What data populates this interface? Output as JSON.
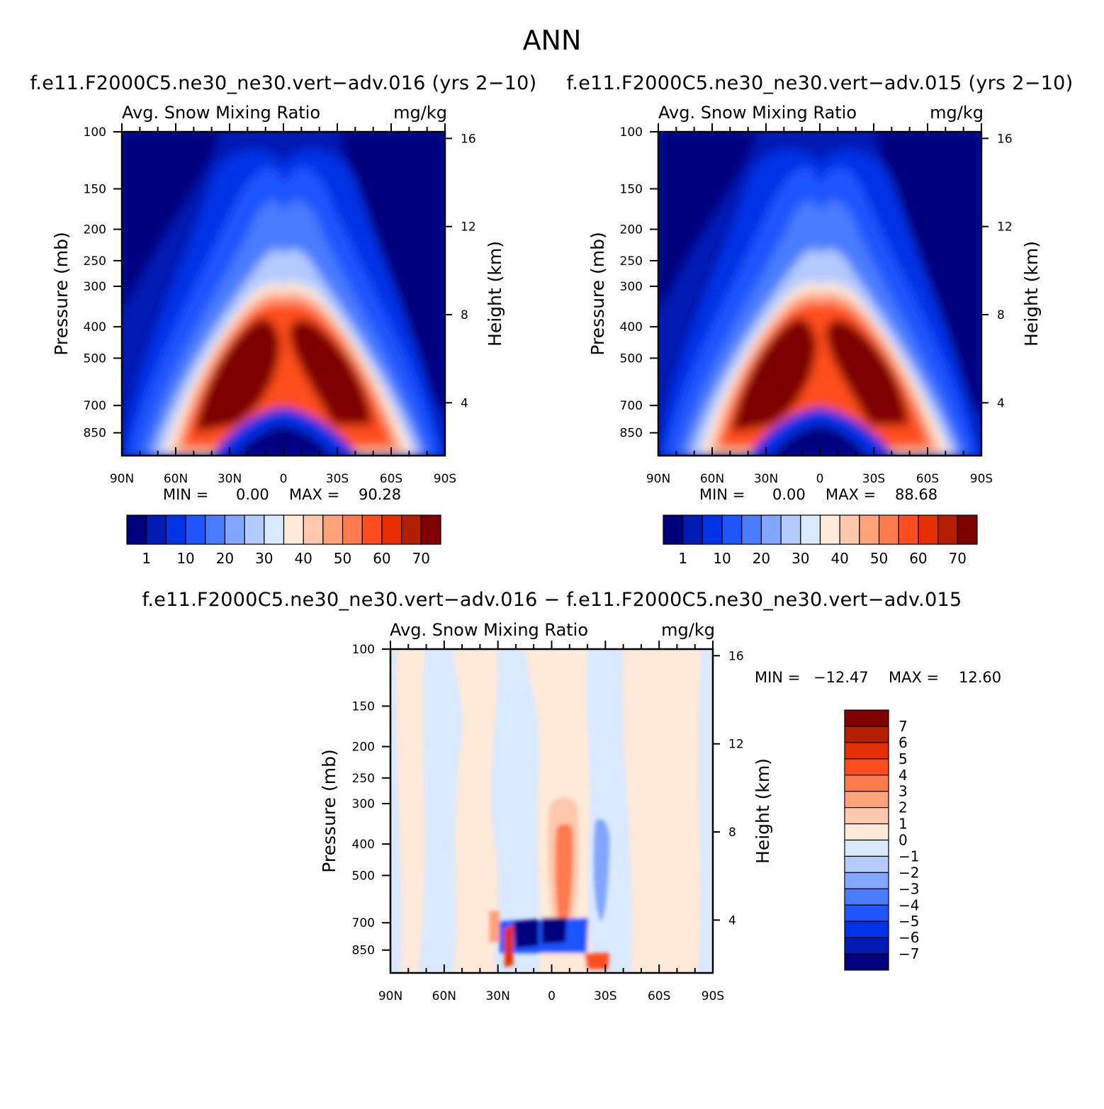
{
  "page": {
    "title": "ANN"
  },
  "chart_data": [
    {
      "type": "contour",
      "case_title": "f.e11.F2000C5.ne30_ne30.vert−adv.016 (yrs 2−10)",
      "variable": "Avg. Snow Mixing Ratio",
      "units": "mg/kg",
      "xlabel": "",
      "ylabel": "Pressure (mb)",
      "y2label": "Height (km)",
      "x_ticks": [
        "90N",
        "60N",
        "30N",
        "0",
        "30S",
        "60S",
        "90S"
      ],
      "y_ticks": [
        100,
        150,
        200,
        250,
        300,
        400,
        500,
        700,
        850
      ],
      "y2_ticks": [
        16,
        12,
        8,
        4
      ],
      "y_scale": "log",
      "ylim": [
        100,
        1000
      ],
      "min_label": "MIN =",
      "min_value": "0.00",
      "max_label": "MAX =",
      "max_value": "90.28",
      "levels": [
        1,
        5,
        10,
        15,
        20,
        25,
        30,
        35,
        40,
        45,
        50,
        55,
        60,
        65,
        70
      ],
      "colorbar_labels": [
        "1",
        "10",
        "20",
        "30",
        "40",
        "50",
        "60",
        "70"
      ],
      "colors": [
        "#00007f",
        "#001ab3",
        "#0033e6",
        "#1e55ff",
        "#4a7cff",
        "#80a6ff",
        "#b3cbff",
        "#d9e9ff",
        "#ffe9d8",
        "#ffc8ad",
        "#ffa27a",
        "#ff7a4d",
        "#ff4d1f",
        "#e62e00",
        "#b31d00",
        "#7f0000"
      ]
    },
    {
      "type": "contour",
      "case_title": "f.e11.F2000C5.ne30_ne30.vert−adv.015 (yrs 2−10)",
      "variable": "Avg. Snow Mixing Ratio",
      "units": "mg/kg",
      "xlabel": "",
      "ylabel": "Pressure (mb)",
      "y2label": "Height (km)",
      "x_ticks": [
        "90N",
        "60N",
        "30N",
        "0",
        "30S",
        "60S",
        "90S"
      ],
      "y_ticks": [
        100,
        150,
        200,
        250,
        300,
        400,
        500,
        700,
        850
      ],
      "y2_ticks": [
        16,
        12,
        8,
        4
      ],
      "y_scale": "log",
      "ylim": [
        100,
        1000
      ],
      "min_label": "MIN =",
      "min_value": "0.00",
      "max_label": "MAX =",
      "max_value": "88.68",
      "levels": [
        1,
        5,
        10,
        15,
        20,
        25,
        30,
        35,
        40,
        45,
        50,
        55,
        60,
        65,
        70
      ],
      "colorbar_labels": [
        "1",
        "10",
        "20",
        "30",
        "40",
        "50",
        "60",
        "70"
      ],
      "colors": [
        "#00007f",
        "#001ab3",
        "#0033e6",
        "#1e55ff",
        "#4a7cff",
        "#80a6ff",
        "#b3cbff",
        "#d9e9ff",
        "#ffe9d8",
        "#ffc8ad",
        "#ffa27a",
        "#ff7a4d",
        "#ff4d1f",
        "#e62e00",
        "#b31d00",
        "#7f0000"
      ]
    },
    {
      "type": "contour",
      "case_title": "f.e11.F2000C5.ne30_ne30.vert−adv.016 − f.e11.F2000C5.ne30_ne30.vert−adv.015",
      "variable": "Avg. Snow Mixing Ratio",
      "units": "mg/kg",
      "xlabel": "",
      "ylabel": "Pressure (mb)",
      "y2label": "Height (km)",
      "x_ticks": [
        "90N",
        "60N",
        "30N",
        "0",
        "30S",
        "60S",
        "90S"
      ],
      "y_ticks": [
        100,
        150,
        200,
        250,
        300,
        400,
        500,
        700,
        850
      ],
      "y2_ticks": [
        16,
        12,
        8,
        4
      ],
      "y_scale": "log",
      "ylim": [
        100,
        1000
      ],
      "min_label": "MIN =",
      "min_value": "−12.47",
      "max_label": "MAX =",
      "max_value": "12.60",
      "levels": [
        -7,
        -6,
        -5,
        -4,
        -3,
        -2,
        -1,
        0,
        1,
        2,
        3,
        4,
        5,
        6,
        7
      ],
      "colorbar_labels": [
        "7",
        "6",
        "5",
        "4",
        "3",
        "2",
        "1",
        "0",
        "−1",
        "−2",
        "−3",
        "−4",
        "−5",
        "−6",
        "−7"
      ],
      "colors": [
        "#7f0000",
        "#b31d00",
        "#e62e00",
        "#ff4d1f",
        "#ff7a4d",
        "#ffa27a",
        "#ffc8ad",
        "#ffe9d8",
        "#d9e9ff",
        "#b3cbff",
        "#80a6ff",
        "#4a7cff",
        "#1e55ff",
        "#0033e6",
        "#001ab3",
        "#00007f"
      ]
    }
  ]
}
